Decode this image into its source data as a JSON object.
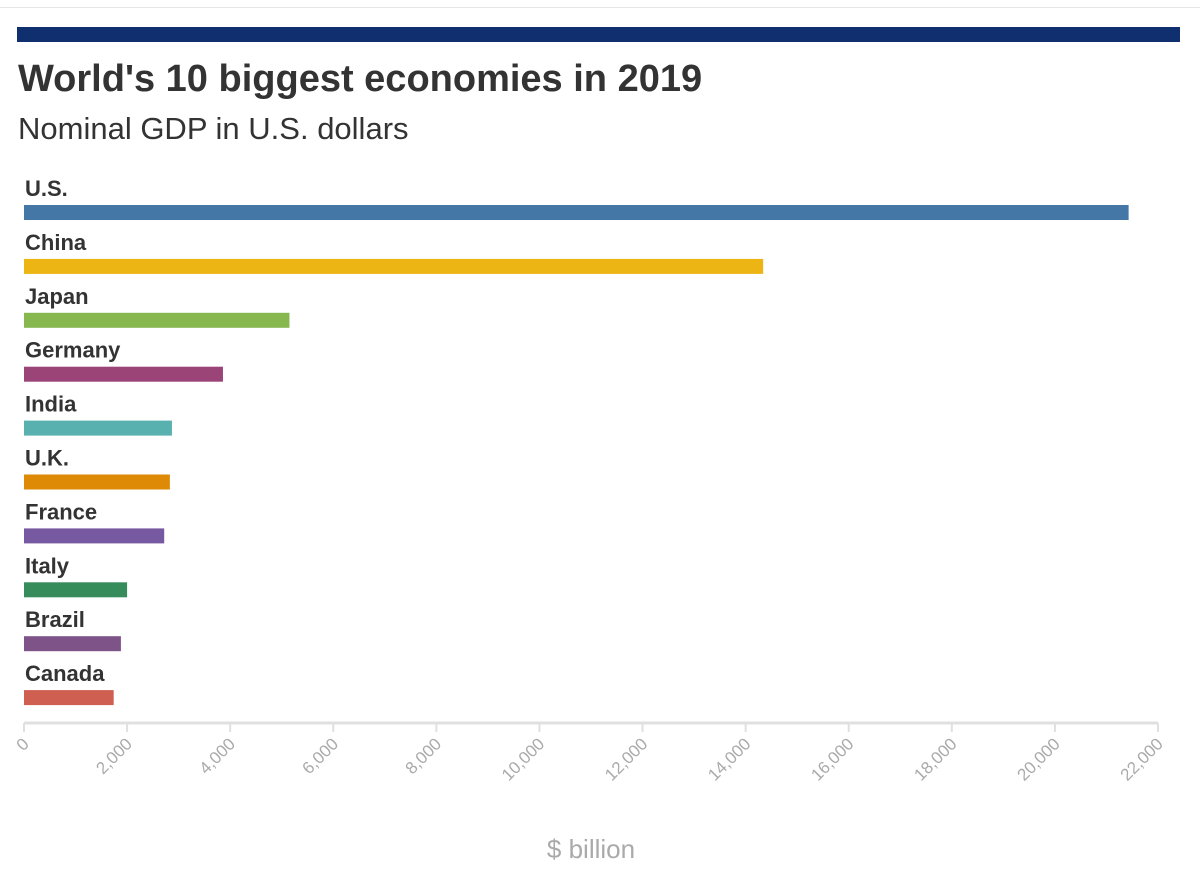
{
  "header": {
    "title": "World's 10 biggest economies in 2019",
    "subtitle": "Nominal GDP in U.S. dollars"
  },
  "colors": {
    "accent": "#0f2f6e",
    "axis": "#e0e0e0",
    "label": "#333333",
    "tick": "#aaaaaa"
  },
  "chart_data": {
    "type": "bar",
    "orientation": "horizontal",
    "title": "World's 10 biggest economies in 2019",
    "subtitle": "Nominal GDP in U.S. dollars",
    "xlabel": "$ billion",
    "ylabel": "",
    "xlim": [
      0,
      22000
    ],
    "xticks": [
      0,
      2000,
      4000,
      6000,
      8000,
      10000,
      12000,
      14000,
      16000,
      18000,
      20000,
      22000
    ],
    "xtick_labels": [
      "0",
      "2,000",
      "4,000",
      "6,000",
      "8,000",
      "10,000",
      "12,000",
      "14,000",
      "16,000",
      "18,000",
      "20,000",
      "22,000"
    ],
    "grid": false,
    "legend": "none",
    "categories": [
      "U.S.",
      "China",
      "Japan",
      "Germany",
      "India",
      "U.K.",
      "France",
      "Italy",
      "Brazil",
      "Canada"
    ],
    "values": [
      21430,
      14340,
      5150,
      3860,
      2870,
      2830,
      2720,
      2000,
      1880,
      1740
    ],
    "bar_colors": [
      "#4577a6",
      "#ecb513",
      "#86b84f",
      "#9b4478",
      "#58b1ae",
      "#de8a06",
      "#7659a0",
      "#378c5c",
      "#7e5388",
      "#cf5f51"
    ]
  }
}
